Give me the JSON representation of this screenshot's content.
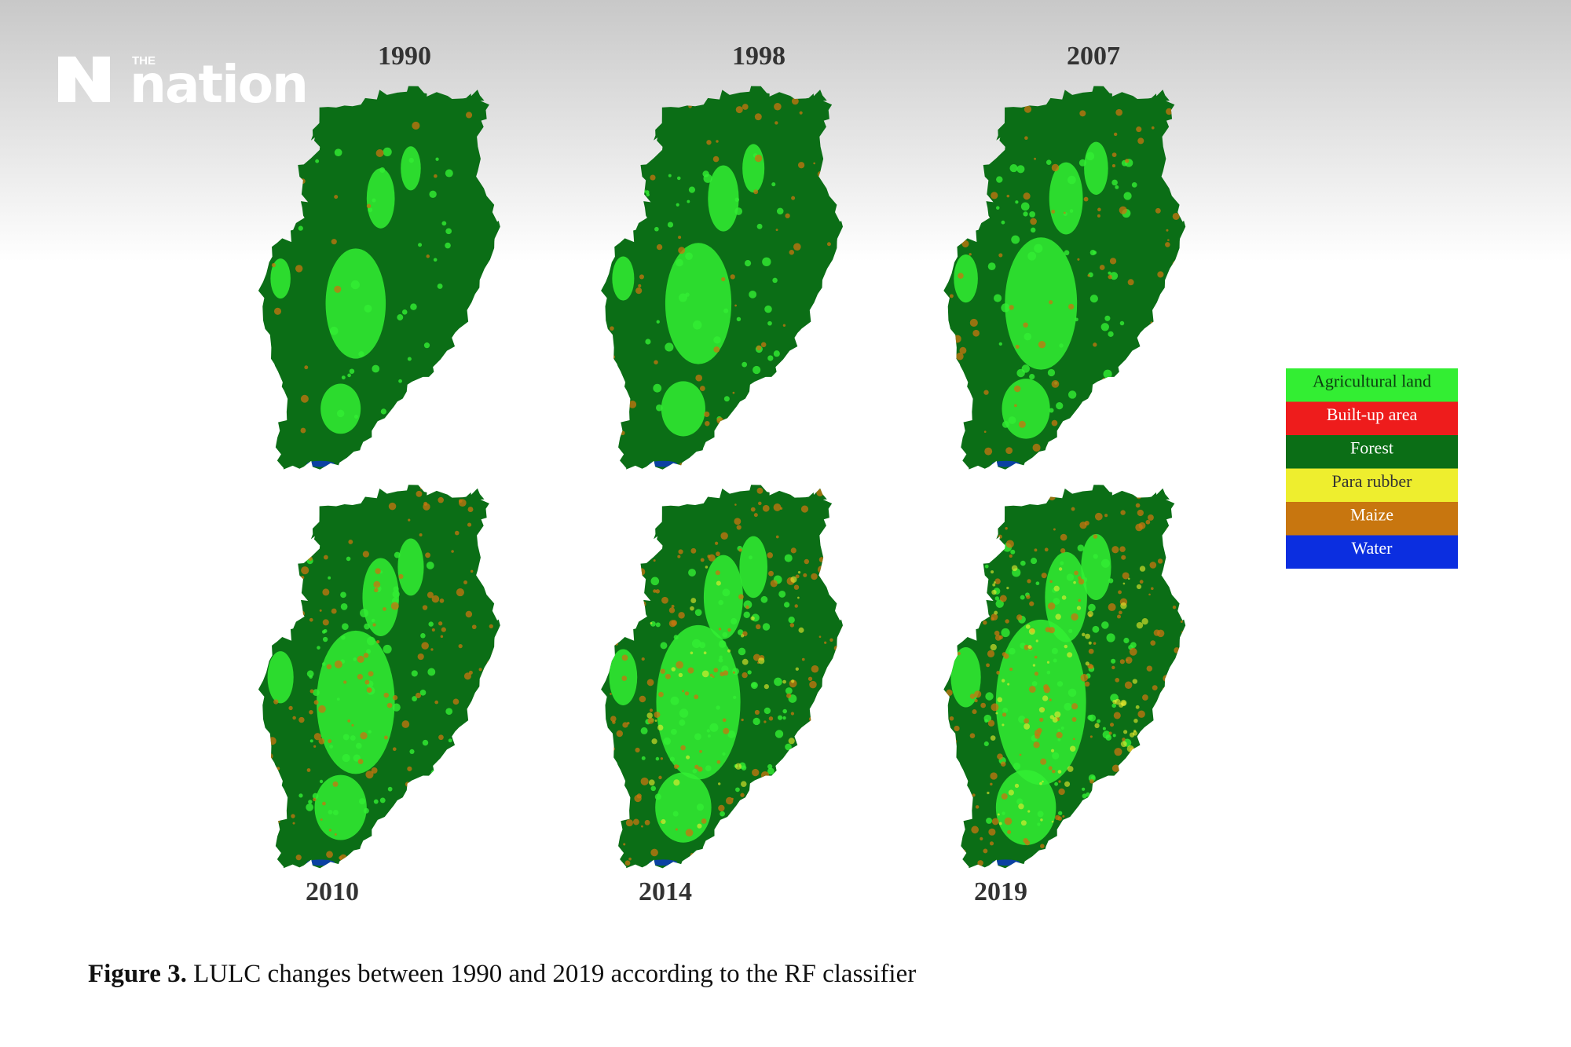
{
  "logo": {
    "small": "THE",
    "name": "nation"
  },
  "figure": {
    "panels": [
      {
        "year": "1990"
      },
      {
        "year": "1998"
      },
      {
        "year": "2007"
      },
      {
        "year": "2010"
      },
      {
        "year": "2014"
      },
      {
        "year": "2019"
      }
    ],
    "legend": [
      {
        "label": "Agricultural land",
        "color": "#33ee33",
        "text_color": "#0b3d10"
      },
      {
        "label": "Built-up area",
        "color": "#ee1c1c",
        "text_color": "#ffffff"
      },
      {
        "label": "Forest",
        "color": "#0b6e16",
        "text_color": "#ffffff"
      },
      {
        "label": "Para rubber",
        "color": "#eeee2e",
        "text_color": "#333333"
      },
      {
        "label": "Maize",
        "color": "#c8760f",
        "text_color": "#ffffff"
      },
      {
        "label": "Water",
        "color": "#0b2ee0",
        "text_color": "#ffffff"
      }
    ],
    "caption": {
      "label": "Figure 3.",
      "text": "LULC changes between 1990 and 2019 according to the RF classifier"
    }
  }
}
